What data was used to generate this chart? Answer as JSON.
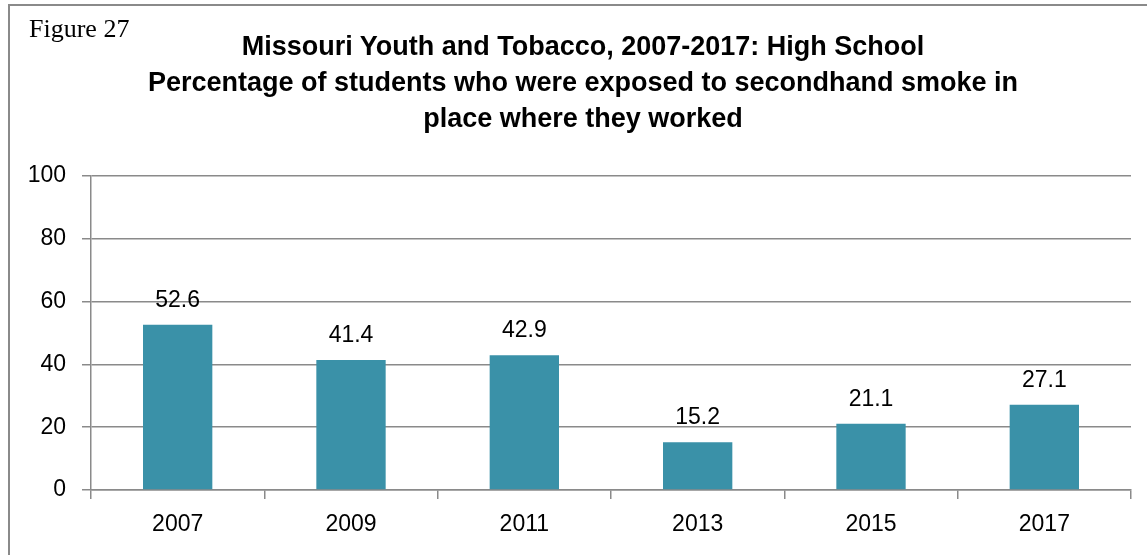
{
  "chart_data": {
    "type": "bar",
    "title": "Missouri Youth and Tobacco, 2007-2017: High School",
    "subtitle": "Percentage of students who were exposed to secondhand smoke in place where they worked",
    "annotations": [
      "Figure 27"
    ],
    "categories": [
      "2007",
      "2009",
      "2011",
      "2013",
      "2015",
      "2017"
    ],
    "values": [
      52.6,
      41.4,
      42.9,
      15.2,
      21.1,
      27.1
    ],
    "color": "#3a91a8",
    "ylim": [
      0,
      100
    ],
    "yticks": [
      0,
      20,
      40,
      60,
      80,
      100
    ],
    "grid": "y",
    "data_labels": true
  }
}
